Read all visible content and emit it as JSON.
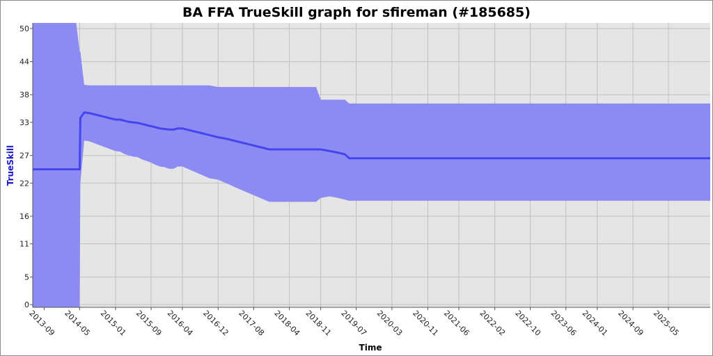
{
  "chart_data": {
    "type": "area",
    "title": "BA FFA TrueSkill graph for sfireman (#185685)",
    "xlabel": "Time",
    "ylabel": "TrueSkill",
    "ylim": [
      -0.5,
      51
    ],
    "xlim": [
      "2013-06-15",
      "2026-02-10"
    ],
    "y_ticks": [
      {
        "label": "0",
        "value": 0
      },
      {
        "label": "5",
        "value": 5
      },
      {
        "label": "11",
        "value": 11
      },
      {
        "label": "16",
        "value": 16
      },
      {
        "label": "22",
        "value": 22
      },
      {
        "label": "27",
        "value": 27
      },
      {
        "label": "33",
        "value": 33
      },
      {
        "label": "38",
        "value": 38
      },
      {
        "label": "44",
        "value": 44
      },
      {
        "label": "50",
        "value": 50
      }
    ],
    "x_ticks": [
      "2013-09",
      "2014-05",
      "2015-01",
      "2015-09",
      "2016-04",
      "2016-12",
      "2017-08",
      "2018-04",
      "2018-11",
      "2019-07",
      "2020-03",
      "2020-11",
      "2021-06",
      "2022-02",
      "2022-10",
      "2023-06",
      "2024-01",
      "2024-09",
      "2025-05"
    ],
    "grid": true,
    "colors": {
      "plot_background": "#e5e5e5",
      "band": "#8b8bf3",
      "line": "#4545ee",
      "ylabel": "#1a1acc",
      "grid": "#c0c0c0"
    },
    "series": [
      {
        "x": [
          "2013-06-15",
          "2014-04-08",
          "2014-05-01",
          "2014-05-06",
          "2014-06-01",
          "2014-07-01",
          "2014-08-01",
          "2014-09-01",
          "2014-10-01",
          "2014-11-01",
          "2014-12-01",
          "2015-01-01",
          "2015-02-01",
          "2015-03-01",
          "2015-04-01",
          "2015-05-01",
          "2015-06-01",
          "2015-07-01",
          "2015-08-01",
          "2015-09-01",
          "2015-10-01",
          "2015-11-01",
          "2015-12-01",
          "2016-01-01",
          "2016-02-01",
          "2016-03-01",
          "2016-04-01",
          "2016-06-01",
          "2016-08-01",
          "2016-10-01",
          "2016-12-01",
          "2017-02-01",
          "2017-04-01",
          "2017-06-01",
          "2017-08-01",
          "2017-10-01",
          "2017-11-15",
          "2018-01-01",
          "2018-04-01",
          "2018-07-01",
          "2018-10-01",
          "2018-11-01",
          "2019-01-01",
          "2019-03-01",
          "2019-04-15",
          "2019-05-15",
          "2026-02-10"
        ],
        "values": [
          24.5,
          24.5,
          24.5,
          33.8,
          34.8,
          34.7,
          34.5,
          34.3,
          34.1,
          33.9,
          33.7,
          33.5,
          33.5,
          33.3,
          33.1,
          33.0,
          32.9,
          32.7,
          32.5,
          32.3,
          32.1,
          31.9,
          31.8,
          31.7,
          31.7,
          31.9,
          31.9,
          31.5,
          31.1,
          30.7,
          30.3,
          30.0,
          29.6,
          29.2,
          28.8,
          28.4,
          28.1,
          28.1,
          28.1,
          28.1,
          28.1,
          28.1,
          27.8,
          27.5,
          27.2,
          26.5,
          26.5
        ],
        "upper": [
          51.5,
          51.5,
          45.8,
          45.8,
          39.8,
          39.7,
          39.7,
          39.7,
          39.7,
          39.7,
          39.7,
          39.7,
          39.7,
          39.7,
          39.7,
          39.7,
          39.7,
          39.7,
          39.7,
          39.7,
          39.7,
          39.7,
          39.7,
          39.7,
          39.7,
          39.7,
          39.7,
          39.7,
          39.7,
          39.7,
          39.4,
          39.4,
          39.4,
          39.4,
          39.4,
          39.4,
          39.4,
          39.4,
          39.4,
          39.4,
          39.4,
          37.1,
          37.1,
          37.1,
          37.1,
          36.4,
          36.4
        ],
        "lower": [
          -0.5,
          -0.5,
          -0.5,
          22.0,
          29.7,
          29.6,
          29.3,
          29.0,
          28.7,
          28.4,
          28.1,
          27.8,
          27.7,
          27.3,
          27.0,
          26.8,
          26.7,
          26.3,
          26.0,
          25.7,
          25.3,
          25.0,
          24.9,
          24.6,
          24.6,
          25.0,
          25.0,
          24.3,
          23.6,
          22.9,
          22.6,
          21.9,
          21.2,
          20.5,
          19.8,
          19.1,
          18.6,
          18.6,
          18.6,
          18.6,
          18.6,
          19.3,
          19.6,
          19.3,
          19.0,
          18.8,
          18.8
        ]
      }
    ]
  }
}
